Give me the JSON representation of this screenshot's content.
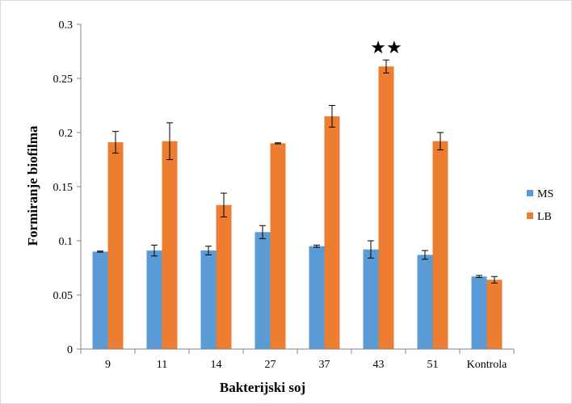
{
  "chart_data": {
    "type": "bar",
    "title": "",
    "xlabel": "Bakterijski soj",
    "ylabel": "Formiranje biofilma",
    "ylim": [
      0,
      0.3
    ],
    "yticks": [
      "0",
      "0.05",
      "0.1",
      "0.15",
      "0.2",
      "0.25",
      "0.3"
    ],
    "ytick_values": [
      0,
      0.05,
      0.1,
      0.15,
      0.2,
      0.25,
      0.3
    ],
    "categories": [
      "9",
      "11",
      "14",
      "27",
      "37",
      "43",
      "51",
      "Kontrola"
    ],
    "series": [
      {
        "name": "MS",
        "color": "#5b9bd5",
        "values": [
          0.09,
          0.091,
          0.091,
          0.108,
          0.095,
          0.092,
          0.087,
          0.067
        ],
        "errors": [
          0.0005,
          0.005,
          0.004,
          0.006,
          0.001,
          0.008,
          0.004,
          0.001
        ]
      },
      {
        "name": "LB",
        "color": "#ed7d31",
        "values": [
          0.191,
          0.192,
          0.133,
          0.19,
          0.215,
          0.261,
          0.192,
          0.064
        ],
        "errors": [
          0.01,
          0.017,
          0.011,
          0.0005,
          0.01,
          0.006,
          0.008,
          0.003
        ]
      }
    ],
    "annotations": [
      {
        "text": "★★",
        "category": "43",
        "series": "LB"
      }
    ],
    "legend": "right",
    "grid": false
  }
}
